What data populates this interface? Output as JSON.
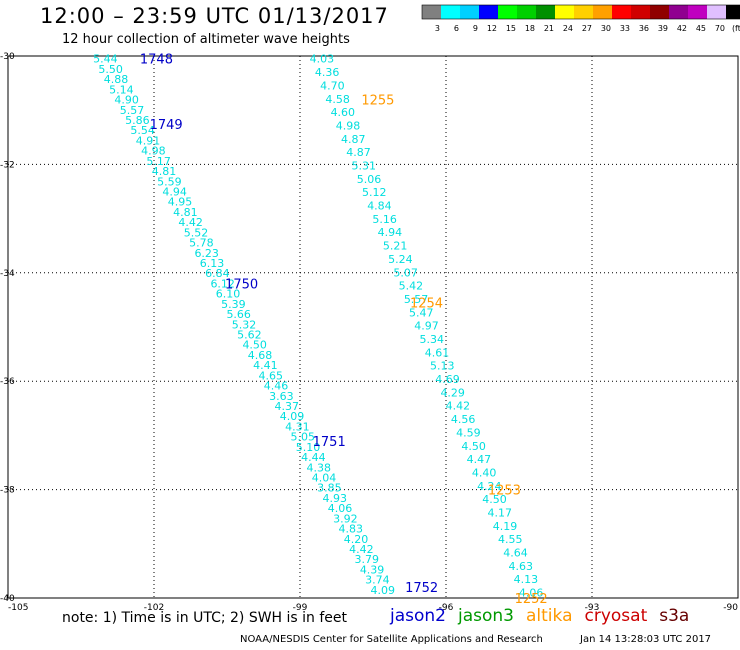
{
  "title": "12:00 – 23:59 UTC 01/13/2017",
  "subtitle": "12 hour collection of altimeter wave heights",
  "legend": {
    "colors": [
      "#808080",
      "#00ffff",
      "#00d0ff",
      "#0000ff",
      "#00ff00",
      "#00d000",
      "#009000",
      "#ffff00",
      "#ffd000",
      "#ffa000",
      "#ff0000",
      "#d00000",
      "#900000",
      "#900090",
      "#c000c0",
      "#e0c0ff",
      "#000000"
    ],
    "labels": [
      "3",
      "6",
      "9",
      "12",
      "15",
      "18",
      "21",
      "24",
      "27",
      "30",
      "33",
      "36",
      "39",
      "42",
      "45",
      "70",
      "(ft)"
    ]
  },
  "axes": {
    "lon_ticks": [
      "-105",
      "-102",
      "-99",
      "-96",
      "-93",
      "-90"
    ],
    "lat_ticks": [
      "-30",
      "-32",
      "-34",
      "-36",
      "-38",
      "-40"
    ]
  },
  "tracks": [
    {
      "satellite": "jason2",
      "color": "#0000c8",
      "swh": [
        "5.44",
        "5.50",
        "4.88",
        "5.14",
        "4.90",
        "5.57",
        "5.86",
        "5.54",
        "4.91",
        "4.98",
        "5.17",
        "4.81",
        "5.59",
        "4.94",
        "4.95",
        "4.81",
        "4.42",
        "5.52",
        "5.78",
        "6.23",
        "6.13",
        "6.84",
        "6.12",
        "6.10",
        "5.39",
        "5.66",
        "5.32",
        "5.62",
        "4.50",
        "4.68",
        "4.41",
        "4.65",
        "4.46",
        "3.63",
        "4.37",
        "4.09",
        "4.31",
        "5.05",
        "5.10",
        "4.44",
        "4.38",
        "4.04",
        "3.85",
        "4.93",
        "4.06",
        "3.92",
        "4.83",
        "4.20",
        "4.42",
        "3.79",
        "4.39",
        "3.74",
        "4.09"
      ],
      "passes": [
        {
          "time": "1748",
          "lon": -101.95,
          "lat": -30.05
        },
        {
          "time": "1749",
          "lon": -101.75,
          "lat": -31.25
        },
        {
          "time": "1750",
          "lon": -100.2,
          "lat": -34.2
        },
        {
          "time": "1751",
          "lon": -98.4,
          "lat": -37.1
        },
        {
          "time": "1752",
          "lon": -96.5,
          "lat": -39.8
        }
      ]
    },
    {
      "satellite": "altika",
      "color": "#ff9900",
      "swh": [
        "4.03",
        "4.36",
        "4.70",
        "4.58",
        "4.60",
        "4.98",
        "4.87",
        "4.87",
        "5.31",
        "5.06",
        "5.12",
        "4.84",
        "5.16",
        "4.94",
        "5.21",
        "5.24",
        "5.07",
        "5.42",
        "5.57",
        "5.47",
        "4.97",
        "5.34",
        "4.61",
        "5.13",
        "4.69",
        "4.29",
        "4.42",
        "4.56",
        "4.59",
        "4.50",
        "4.47",
        "4.40",
        "4.24",
        "4.50",
        "4.17",
        "4.19",
        "4.55",
        "4.64",
        "4.63",
        "4.13",
        "4.06"
      ],
      "passes": [
        {
          "time": "1255",
          "lon": -97.4,
          "lat": -30.8
        },
        {
          "time": "1254",
          "lon": -96.4,
          "lat": -34.55
        },
        {
          "time": "1253",
          "lon": -94.8,
          "lat": -38.0
        },
        {
          "time": "1252",
          "lon": -94.25,
          "lat": -40.0
        }
      ]
    }
  ],
  "note": "note: 1) Time is in UTC; 2) SWH is in feet",
  "satellites": [
    {
      "name": "jason2",
      "color": "#0000cc"
    },
    {
      "name": "jason3",
      "color": "#009900"
    },
    {
      "name": "altika",
      "color": "#ff9900"
    },
    {
      "name": "cryosat",
      "color": "#cc0000"
    },
    {
      "name": "s3a",
      "color": "#660000"
    }
  ],
  "credit": "NOAA/NESDIS Center for Satellite Applications and Research",
  "timestamp": "Jan 14 13:28:03 UTC 2017"
}
